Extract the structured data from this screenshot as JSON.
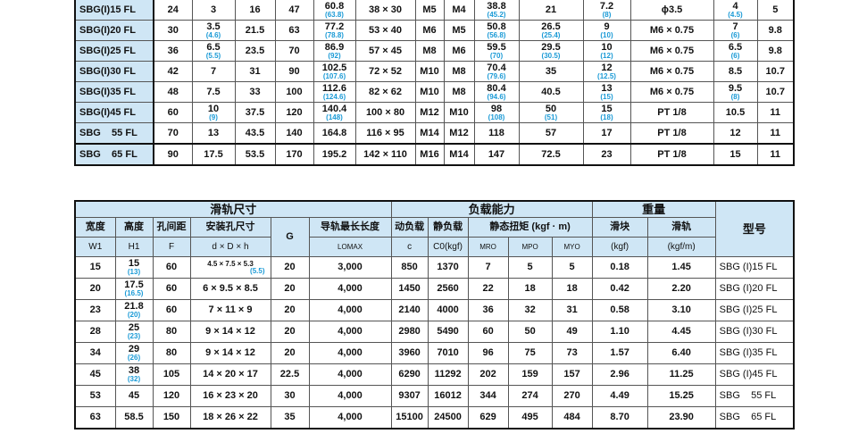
{
  "top_table": {
    "rows": [
      {
        "model": "SBG(I)15 FL",
        "cells": [
          {
            "v": "24"
          },
          {
            "v": "3"
          },
          {
            "v": "16"
          },
          {
            "v": "47"
          },
          {
            "v": "60.8",
            "s": "(63.8)"
          },
          {
            "v": "38 × 30"
          },
          {
            "v": "M5"
          },
          {
            "v": "M4"
          },
          {
            "v": "38.8",
            "s": "(45.2)"
          },
          {
            "v": "21"
          },
          {
            "v": "7.2",
            "s": "(8)"
          },
          {
            "v": "ϕ3.5"
          },
          {
            "v": "4",
            "s": "(4.5)"
          },
          {
            "v": "5"
          }
        ]
      },
      {
        "model": "SBG(I)20 FL",
        "cells": [
          {
            "v": "30"
          },
          {
            "v": "3.5",
            "s": "(4.6)"
          },
          {
            "v": "21.5"
          },
          {
            "v": "63"
          },
          {
            "v": "77.2",
            "s": "(78.8)"
          },
          {
            "v": "53 × 40"
          },
          {
            "v": "M6"
          },
          {
            "v": "M5"
          },
          {
            "v": "50.8",
            "s": "(56.8)"
          },
          {
            "v": "26.5",
            "s": "(25.4)"
          },
          {
            "v": "9",
            "s": "(10)"
          },
          {
            "v": "M6 × 0.75"
          },
          {
            "v": "7",
            "s": "(6)"
          },
          {
            "v": "9.8"
          }
        ]
      },
      {
        "model": "SBG(I)25 FL",
        "cells": [
          {
            "v": "36"
          },
          {
            "v": "6.5",
            "s": "(5.5)"
          },
          {
            "v": "23.5"
          },
          {
            "v": "70"
          },
          {
            "v": "86.9",
            "s": "(92)"
          },
          {
            "v": "57 × 45"
          },
          {
            "v": "M8"
          },
          {
            "v": "M6"
          },
          {
            "v": "59.5",
            "s": "(70)"
          },
          {
            "v": "29.5",
            "s": "(30.5)"
          },
          {
            "v": "10",
            "s": "(12)"
          },
          {
            "v": "M6 × 0.75"
          },
          {
            "v": "6.5",
            "s": "(6)"
          },
          {
            "v": "9.8"
          }
        ]
      },
      {
        "model": "SBG(I)30 FL",
        "cells": [
          {
            "v": "42"
          },
          {
            "v": "7"
          },
          {
            "v": "31"
          },
          {
            "v": "90"
          },
          {
            "v": "102.5",
            "s": "(107.6)"
          },
          {
            "v": "72 × 52"
          },
          {
            "v": "M10"
          },
          {
            "v": "M8"
          },
          {
            "v": "70.4",
            "s": "(79.6)"
          },
          {
            "v": "35"
          },
          {
            "v": "12",
            "s": "(12.5)"
          },
          {
            "v": "M6 × 0.75"
          },
          {
            "v": "8.5"
          },
          {
            "v": "10.7"
          }
        ]
      },
      {
        "model": "SBG(I)35 FL",
        "cells": [
          {
            "v": "48"
          },
          {
            "v": "7.5"
          },
          {
            "v": "33"
          },
          {
            "v": "100"
          },
          {
            "v": "112.6",
            "s": "(124.6)"
          },
          {
            "v": "82 × 62"
          },
          {
            "v": "M10"
          },
          {
            "v": "M8"
          },
          {
            "v": "80.4",
            "s": "(94.6)"
          },
          {
            "v": "40.5"
          },
          {
            "v": "13",
            "s": "(15)"
          },
          {
            "v": "M6 × 0.75"
          },
          {
            "v": "9.5",
            "s": "(8)"
          },
          {
            "v": "10.7"
          }
        ]
      },
      {
        "model": "SBG(I)45 FL",
        "cells": [
          {
            "v": "60"
          },
          {
            "v": "10",
            "s": "(9)"
          },
          {
            "v": "37.5"
          },
          {
            "v": "120"
          },
          {
            "v": "140.4",
            "s": "(148)"
          },
          {
            "v": "100 × 80"
          },
          {
            "v": "M12"
          },
          {
            "v": "M10"
          },
          {
            "v": "98",
            "s": "(108)"
          },
          {
            "v": "50",
            "s": "(51)"
          },
          {
            "v": "15",
            "s": "(18)"
          },
          {
            "v": "PT 1/8"
          },
          {
            "v": "10.5"
          },
          {
            "v": "11"
          }
        ]
      },
      {
        "model": "SBG    55 FL",
        "cells": [
          {
            "v": "70"
          },
          {
            "v": "13"
          },
          {
            "v": "43.5"
          },
          {
            "v": "140"
          },
          {
            "v": "164.8"
          },
          {
            "v": "116 × 95"
          },
          {
            "v": "M14"
          },
          {
            "v": "M12"
          },
          {
            "v": "118"
          },
          {
            "v": "57"
          },
          {
            "v": "17"
          },
          {
            "v": "PT 1/8"
          },
          {
            "v": "12"
          },
          {
            "v": "11"
          }
        ]
      },
      {
        "model": "SBG    65 FL",
        "cells": [
          {
            "v": "90"
          },
          {
            "v": "17.5"
          },
          {
            "v": "53.5"
          },
          {
            "v": "170"
          },
          {
            "v": "195.2"
          },
          {
            "v": "142 × 110"
          },
          {
            "v": "M16"
          },
          {
            "v": "M14"
          },
          {
            "v": "147"
          },
          {
            "v": "72.5"
          },
          {
            "v": "23"
          },
          {
            "v": "PT 1/8"
          },
          {
            "v": "15"
          },
          {
            "v": "11"
          }
        ]
      }
    ]
  },
  "bottom_table": {
    "groups": {
      "rail": "滑轨尺寸",
      "load": "负载能力",
      "weight": "重量",
      "model": "型号"
    },
    "headers": {
      "w1": "宽度",
      "h1": "高度",
      "f": "孔间距",
      "dDh": "安装孔尺寸",
      "g": "G",
      "lmax": "导轨最长长度",
      "c": "动负载",
      "c0": "静负载",
      "torque": "静态扭矩 (kgf · m)",
      "block": "滑块",
      "railw": "滑轨"
    },
    "units": {
      "w1": "W1",
      "h1": "H1",
      "f": "F",
      "dDh": "d × D × h",
      "lmax": "LOMAX",
      "c": "c",
      "c0": "C0(kgf)",
      "mro": "MRO",
      "mpo": "MPO",
      "myo": "MYO",
      "block": "(kgf)",
      "railw": "(kgf/m)"
    },
    "rows": [
      {
        "cells": [
          {
            "v": "15"
          },
          {
            "v": "15",
            "s": "(13)"
          },
          {
            "v": "60"
          },
          {
            "v": "4.5 × 7.5 × 5.3",
            "s": "(5.5)",
            "small": true
          },
          {
            "v": "20"
          },
          {
            "v": "3,000"
          },
          {
            "v": "850"
          },
          {
            "v": "1370"
          },
          {
            "v": "7"
          },
          {
            "v": "5"
          },
          {
            "v": "5"
          },
          {
            "v": "0.18"
          },
          {
            "v": "1.45"
          }
        ],
        "model": "SBG (I)15 FL"
      },
      {
        "cells": [
          {
            "v": "20"
          },
          {
            "v": "17.5",
            "s": "(16.5)"
          },
          {
            "v": "60"
          },
          {
            "v": "6 × 9.5 × 8.5"
          },
          {
            "v": "20"
          },
          {
            "v": "4,000"
          },
          {
            "v": "1450"
          },
          {
            "v": "2560"
          },
          {
            "v": "22"
          },
          {
            "v": "18"
          },
          {
            "v": "18"
          },
          {
            "v": "0.42"
          },
          {
            "v": "2.20"
          }
        ],
        "model": "SBG (I)20 FL"
      },
      {
        "cells": [
          {
            "v": "23"
          },
          {
            "v": "21.8",
            "s": "(20)"
          },
          {
            "v": "60"
          },
          {
            "v": "7 × 11 × 9"
          },
          {
            "v": "20"
          },
          {
            "v": "4,000"
          },
          {
            "v": "2140"
          },
          {
            "v": "4000"
          },
          {
            "v": "36"
          },
          {
            "v": "32"
          },
          {
            "v": "31"
          },
          {
            "v": "0.58"
          },
          {
            "v": "3.10"
          }
        ],
        "model": "SBG (I)25 FL"
      },
      {
        "cells": [
          {
            "v": "28"
          },
          {
            "v": "25",
            "s": "(23)"
          },
          {
            "v": "80"
          },
          {
            "v": "9 × 14 × 12"
          },
          {
            "v": "20"
          },
          {
            "v": "4,000"
          },
          {
            "v": "2980"
          },
          {
            "v": "5490"
          },
          {
            "v": "60"
          },
          {
            "v": "50"
          },
          {
            "v": "49"
          },
          {
            "v": "1.10"
          },
          {
            "v": "4.45"
          }
        ],
        "model": "SBG (I)30 FL"
      },
      {
        "cells": [
          {
            "v": "34"
          },
          {
            "v": "29",
            "s": "(26)"
          },
          {
            "v": "80"
          },
          {
            "v": "9 × 14 × 12"
          },
          {
            "v": "20"
          },
          {
            "v": "4,000"
          },
          {
            "v": "3960"
          },
          {
            "v": "7010"
          },
          {
            "v": "96"
          },
          {
            "v": "75"
          },
          {
            "v": "73"
          },
          {
            "v": "1.57"
          },
          {
            "v": "6.40"
          }
        ],
        "model": "SBG (I)35 FL"
      },
      {
        "cells": [
          {
            "v": "45"
          },
          {
            "v": "38",
            "s": "(32)"
          },
          {
            "v": "105"
          },
          {
            "v": "14 × 20 × 17"
          },
          {
            "v": "22.5"
          },
          {
            "v": "4,000"
          },
          {
            "v": "6290"
          },
          {
            "v": "11292"
          },
          {
            "v": "202"
          },
          {
            "v": "159"
          },
          {
            "v": "157"
          },
          {
            "v": "2.96"
          },
          {
            "v": "11.25"
          }
        ],
        "model": "SBG (I)45 FL"
      },
      {
        "cells": [
          {
            "v": "53"
          },
          {
            "v": "45"
          },
          {
            "v": "120"
          },
          {
            "v": "16 × 23 × 20"
          },
          {
            "v": "30"
          },
          {
            "v": "4,000"
          },
          {
            "v": "9307"
          },
          {
            "v": "16012"
          },
          {
            "v": "344"
          },
          {
            "v": "274"
          },
          {
            "v": "270"
          },
          {
            "v": "4.49"
          },
          {
            "v": "15.25"
          }
        ],
        "model": "SBG    55 FL"
      },
      {
        "cells": [
          {
            "v": "63"
          },
          {
            "v": "58.5"
          },
          {
            "v": "150"
          },
          {
            "v": "18 × 26 × 22"
          },
          {
            "v": "35"
          },
          {
            "v": "4,000"
          },
          {
            "v": "15100"
          },
          {
            "v": "24500"
          },
          {
            "v": "629"
          },
          {
            "v": "495"
          },
          {
            "v": "484"
          },
          {
            "v": "8.70"
          },
          {
            "v": "23.90"
          }
        ],
        "model": "SBG    65 FL"
      }
    ]
  },
  "colors": {
    "header_bg": "#cfe6f5",
    "sub_value": "#1a9ad6"
  }
}
